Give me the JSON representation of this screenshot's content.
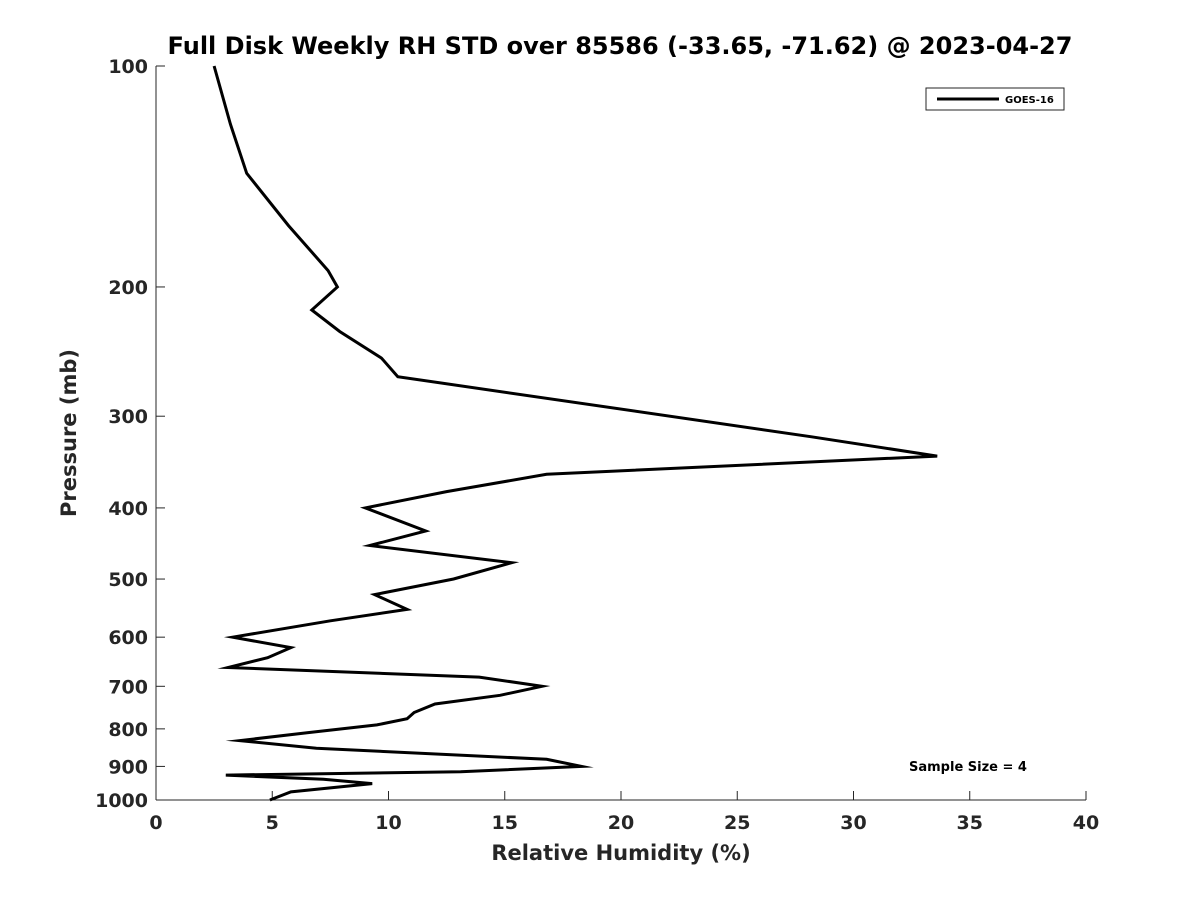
{
  "chart_data": {
    "type": "line",
    "title": "Full Disk Weekly RH STD over 85586 (-33.65, -71.62) @ 2023-04-27",
    "xlabel": "Relative Humidity (%)",
    "ylabel": "Pressure (mb)",
    "xlim": [
      0,
      40
    ],
    "ylim": [
      100,
      1000
    ],
    "y_scale": "log",
    "y_reversed": true,
    "x_ticks": [
      "0",
      "5",
      "10",
      "15",
      "20",
      "25",
      "30",
      "35",
      "40"
    ],
    "y_ticks": [
      "100",
      "200",
      "300",
      "400",
      "500",
      "600",
      "700",
      "800",
      "900",
      "1000"
    ],
    "grid": false,
    "legend": {
      "entries": [
        "GOES-16"
      ],
      "placement": "top-right"
    },
    "annotation": "Sample Size = 4",
    "series": [
      {
        "name": "GOES-16",
        "color": "#000000",
        "points": [
          [
            2.5,
            100
          ],
          [
            3.2,
            120
          ],
          [
            3.9,
            140
          ],
          [
            5.7,
            165
          ],
          [
            7.4,
            190
          ],
          [
            7.8,
            200
          ],
          [
            6.7,
            215
          ],
          [
            7.9,
            230
          ],
          [
            9.7,
            250
          ],
          [
            10.4,
            265
          ],
          [
            28.2,
            320
          ],
          [
            33.6,
            340
          ],
          [
            16.8,
            360
          ],
          [
            12.5,
            380
          ],
          [
            9.0,
            400
          ],
          [
            11.6,
            430
          ],
          [
            9.2,
            450
          ],
          [
            15.3,
            475
          ],
          [
            12.8,
            500
          ],
          [
            9.4,
            525
          ],
          [
            10.8,
            550
          ],
          [
            7.5,
            570
          ],
          [
            3.3,
            600
          ],
          [
            5.8,
            620
          ],
          [
            4.8,
            640
          ],
          [
            3.1,
            660
          ],
          [
            13.9,
            680
          ],
          [
            16.6,
            700
          ],
          [
            14.8,
            720
          ],
          [
            12.0,
            740
          ],
          [
            11.1,
            760
          ],
          [
            10.8,
            775
          ],
          [
            9.5,
            790
          ],
          [
            6.5,
            810
          ],
          [
            3.6,
            830
          ],
          [
            6.9,
            850
          ],
          [
            16.8,
            880
          ],
          [
            18.3,
            900
          ],
          [
            13.1,
            915
          ],
          [
            3.0,
            925
          ],
          [
            7.2,
            937
          ],
          [
            9.3,
            950
          ],
          [
            5.8,
            975
          ],
          [
            4.9,
            1000
          ]
        ]
      }
    ]
  }
}
